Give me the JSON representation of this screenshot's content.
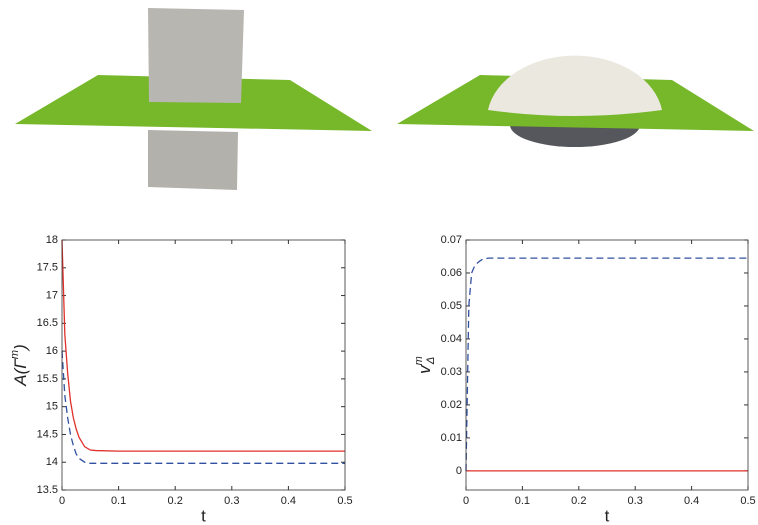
{
  "chart_data": [
    {
      "type": "line",
      "x": [
        0,
        0.005,
        0.01,
        0.015,
        0.02,
        0.025,
        0.03,
        0.04,
        0.05,
        0.06,
        0.1,
        0.2,
        0.3,
        0.4,
        0.5
      ],
      "series": [
        {
          "color": "#e0302a",
          "dash": false,
          "values": [
            18,
            16.3,
            15.6,
            15.1,
            14.8,
            14.6,
            14.45,
            14.28,
            14.22,
            14.21,
            14.2,
            14.2,
            14.2,
            14.2,
            14.2
          ]
        },
        {
          "color": "#3050a0",
          "dash": true,
          "values": [
            16,
            15.2,
            14.8,
            14.5,
            14.3,
            14.15,
            14.07,
            14.0,
            13.98,
            13.98,
            13.98,
            13.98,
            13.98,
            13.98,
            13.98
          ]
        }
      ],
      "xlabel": "t",
      "ylabel": {
        "base": "A(Γ",
        "sup": "m",
        "tail": ")"
      },
      "xlim": [
        0,
        0.5
      ],
      "xticks": [
        0,
        0.1,
        0.2,
        0.3,
        0.4,
        0.5
      ],
      "ylim": [
        13.5,
        18
      ],
      "yticks": [
        13.5,
        14,
        14.5,
        15,
        15.5,
        16,
        16.5,
        17,
        17.5,
        18
      ]
    },
    {
      "type": "line",
      "x": [
        0,
        0.005,
        0.01,
        0.015,
        0.02,
        0.025,
        0.03,
        0.04,
        0.05,
        0.06,
        0.1,
        0.2,
        0.3,
        0.4,
        0.5
      ],
      "series": [
        {
          "color": "#e0302a",
          "dash": false,
          "values": [
            0,
            0,
            0,
            0,
            0,
            0,
            0,
            0,
            0,
            0,
            0,
            0,
            0,
            0,
            0
          ]
        },
        {
          "color": "#3050a0",
          "dash": true,
          "values": [
            0,
            0.05,
            0.06,
            0.062,
            0.063,
            0.0637,
            0.0642,
            0.0645,
            0.0645,
            0.0645,
            0.0645,
            0.0645,
            0.0645,
            0.0645,
            0.0645
          ]
        }
      ],
      "xlabel": "t",
      "ylabel": {
        "base": "v",
        "sup": "m",
        "sub": "Δ"
      },
      "xlim": [
        0,
        0.5
      ],
      "xticks": [
        0,
        0.1,
        0.2,
        0.3,
        0.4,
        0.5
      ],
      "ylim": [
        -0.0058,
        0.07
      ],
      "yticks": [
        0,
        0.01,
        0.02,
        0.03,
        0.04,
        0.05,
        0.06,
        0.07
      ]
    }
  ]
}
